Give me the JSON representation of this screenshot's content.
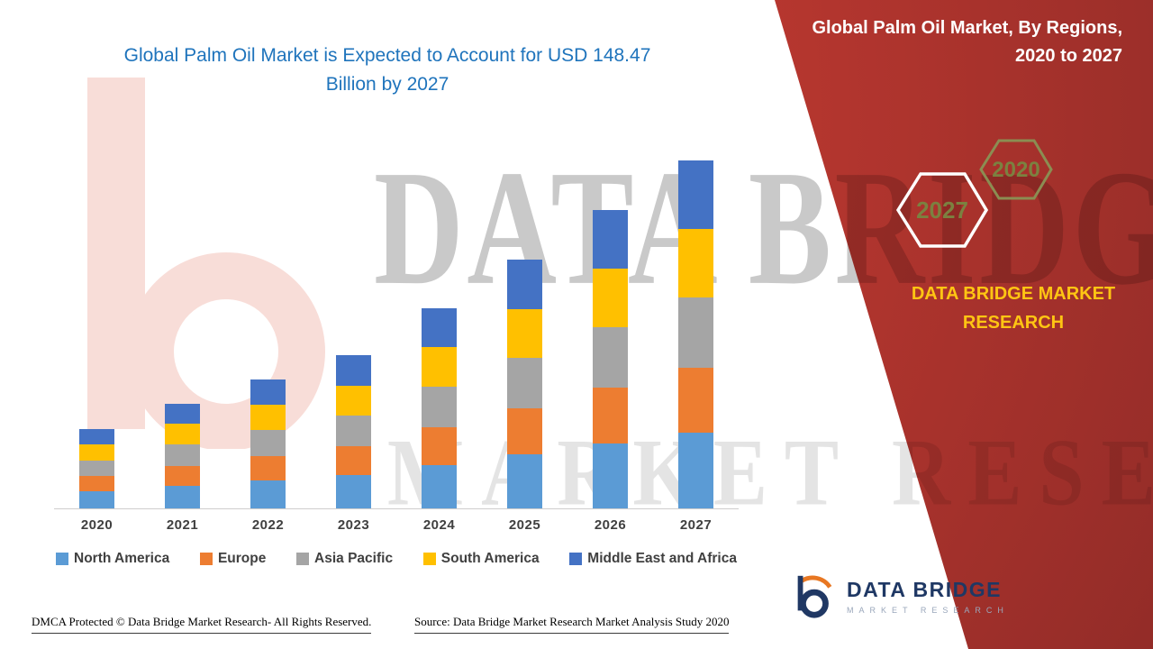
{
  "header": {
    "title_line1": "Global Palm Oil Market is Expected to Account for USD 148.47",
    "title_line2": "Billion by 2027",
    "title_color": "#1F74BC"
  },
  "right_panel": {
    "panel_color": "#BE3A31",
    "title_line1": "Global Palm Oil Market, By Regions,",
    "title_line2": "2020 to 2027",
    "hexagon_back_label": "2020",
    "hexagon_front_label": "2027",
    "hexagon_label_color": "#7B8140",
    "brand_line1": "DATA BRIDGE MARKET",
    "brand_line2": "RESEARCH",
    "brand_color": "#FFC513"
  },
  "watermark": {
    "line1": "DATA BRIDGE",
    "line2": "MARKET RESEARCH"
  },
  "chart_data": {
    "type": "bar",
    "stacked": true,
    "title": "Global Palm Oil Market, By Regions, 2020 to 2027",
    "unit": "USD Billion",
    "stated_total_2027": 148.47,
    "categories": [
      "2020",
      "2021",
      "2022",
      "2023",
      "2024",
      "2025",
      "2026",
      "2027"
    ],
    "series": [
      {
        "name": "North America",
        "color": "#5B9BD5",
        "values": [
          7.4,
          9.8,
          12.0,
          14.2,
          18.6,
          23.0,
          27.7,
          32.2
        ]
      },
      {
        "name": "Europe",
        "color": "#ED7D31",
        "values": [
          6.4,
          8.4,
          10.4,
          12.3,
          16.1,
          19.9,
          24.0,
          27.9
        ]
      },
      {
        "name": "Asia Pacific",
        "color": "#A5A5A5",
        "values": [
          6.8,
          9.0,
          11.2,
          13.2,
          17.3,
          21.4,
          25.8,
          30.0
        ]
      },
      {
        "name": "South America",
        "color": "#FFC000",
        "values": [
          6.6,
          8.8,
          10.8,
          12.8,
          16.8,
          20.8,
          25.0,
          29.1
        ]
      },
      {
        "name": "Middle East and Africa",
        "color": "#4472C4",
        "values": [
          6.6,
          8.7,
          10.8,
          12.8,
          16.7,
          21.0,
          25.0,
          29.3
        ]
      }
    ],
    "ylim": [
      0,
      150
    ],
    "xlabel": "",
    "ylabel": "",
    "grid": false,
    "legend_position": "bottom"
  },
  "footer": {
    "dmca": "DMCA Protected © Data Bridge Market Research- All Rights Reserved.",
    "source": "Source: Data Bridge Market Research Market Analysis Study 2020"
  },
  "logo": {
    "title": "DATA BRIDGE",
    "subtitle": "MARKET RESEARCH"
  }
}
